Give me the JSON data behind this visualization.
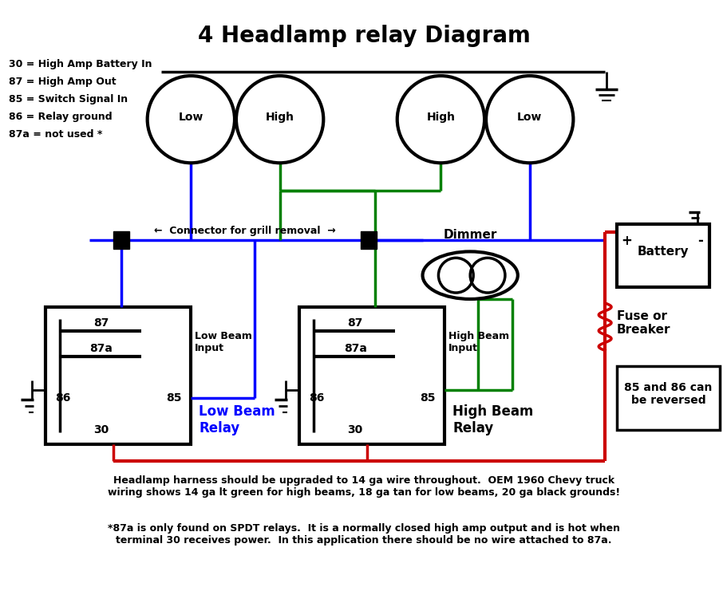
{
  "title": "4 Headlamp relay Diagram",
  "title_fontsize": 20,
  "bg_color": "#ffffff",
  "legend_text": [
    "30 = High Amp Battery In",
    "87 = High Amp Out",
    "85 = Switch Signal In",
    "86 = Relay ground",
    "87a = not used *"
  ],
  "headlamp_labels": [
    "Low",
    "High",
    "High",
    "Low"
  ],
  "note_text1": "Headlamp harness should be upgraded to 14 ga wire throughout.  OEM 1960 Chevy truck\nwiring shows 14 ga lt green for high beams, 18 ga tan for low beams, 20 ga black grounds!",
  "note_text2": "*87a is only found on SPDT relays.  It is a normally closed high amp output and is hot when\nterminal 30 receives power.  In this application there should be no wire attached to 87a.",
  "connector_label": "←  Connector for grill removal  →",
  "dimmer_label": "Dimmer",
  "battery_label": "Battery",
  "fuse_label": "Fuse or\nBreaker",
  "reversed_label": "85 and 86 can\nbe reversed",
  "low_beam_input": "Low Beam\nInput",
  "high_beam_input": "High Beam\nInput",
  "relay1_label": "Low Beam\nRelay",
  "relay2_label": "High Beam\nRelay",
  "wire_lw": 2.5,
  "blue": "#0000ff",
  "green": "#008000",
  "red": "#cc0000",
  "black": "#000000",
  "white": "#ffffff"
}
